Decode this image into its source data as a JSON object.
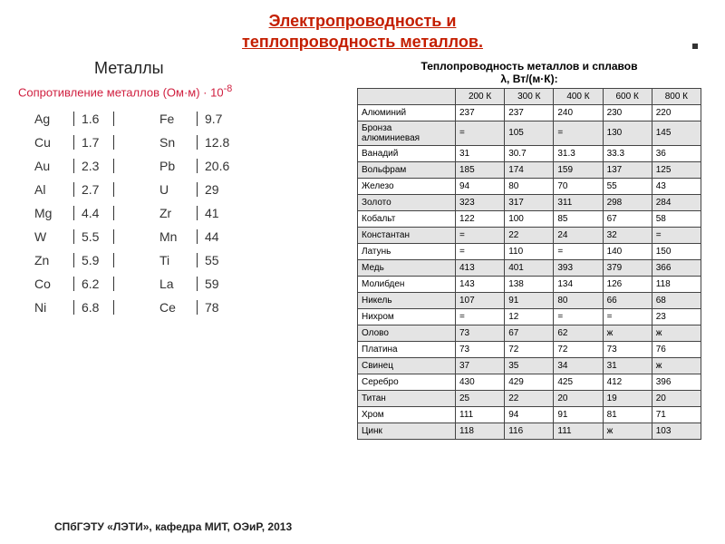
{
  "title_line1": "Электропроводность и",
  "title_line2": "теплопроводность металлов.",
  "metals_heading": "Металлы",
  "resistance_caption_main": "Сопротивление металлов (Ом·м) · 10",
  "resistance_caption_sup": "-8",
  "resistance_left": [
    {
      "sym": "Ag",
      "val": "1.6"
    },
    {
      "sym": "Cu",
      "val": "1.7"
    },
    {
      "sym": "Au",
      "val": "2.3"
    },
    {
      "sym": "Al",
      "val": "2.7"
    },
    {
      "sym": "Mg",
      "val": "4.4"
    },
    {
      "sym": "W",
      "val": "5.5"
    },
    {
      "sym": "Zn",
      "val": "5.9"
    },
    {
      "sym": "Co",
      "val": "6.2"
    },
    {
      "sym": "Ni",
      "val": "6.8"
    }
  ],
  "resistance_right": [
    {
      "sym": "Fe",
      "val": "9.7"
    },
    {
      "sym": "Sn",
      "val": "12.8"
    },
    {
      "sym": "Pb",
      "val": "20.6"
    },
    {
      "sym": "U",
      "val": "29"
    },
    {
      "sym": "Zr",
      "val": "41"
    },
    {
      "sym": "Mn",
      "val": "44"
    },
    {
      "sym": "Ti",
      "val": "55"
    },
    {
      "sym": "La",
      "val": "59"
    },
    {
      "sym": "Ce",
      "val": "78"
    }
  ],
  "tc_title_line1": "Теплопроводность металлов и сплавов",
  "tc_title_line2": "λ, Вт/(м·К):",
  "tc_headers": [
    "",
    "200 К",
    "300 К",
    "400 К",
    "600 К",
    "800 К"
  ],
  "tc_rows": [
    {
      "name": "Алюминий",
      "v": [
        "237",
        "237",
        "240",
        "230",
        "220"
      ]
    },
    {
      "name": "Бронза алюминиевая",
      "v": [
        "=",
        "105",
        "=",
        "130",
        "145"
      ]
    },
    {
      "name": "Ванадий",
      "v": [
        "31",
        "30.7",
        "31.3",
        "33.3",
        "36"
      ]
    },
    {
      "name": "Вольфрам",
      "v": [
        "185",
        "174",
        "159",
        "137",
        "125"
      ]
    },
    {
      "name": "Железо",
      "v": [
        "94",
        "80",
        "70",
        "55",
        "43"
      ]
    },
    {
      "name": "Золото",
      "v": [
        "323",
        "317",
        "311",
        "298",
        "284"
      ]
    },
    {
      "name": "Кобальт",
      "v": [
        "122",
        "100",
        "85",
        "67",
        "58"
      ]
    },
    {
      "name": "Константан",
      "v": [
        "=",
        "22",
        "24",
        "32",
        "="
      ]
    },
    {
      "name": "Латунь",
      "v": [
        "=",
        "110",
        "=",
        "140",
        "150"
      ]
    },
    {
      "name": "Медь",
      "v": [
        "413",
        "401",
        "393",
        "379",
        "366"
      ]
    },
    {
      "name": "Молибден",
      "v": [
        "143",
        "138",
        "134",
        "126",
        "118"
      ]
    },
    {
      "name": "Никель",
      "v": [
        "107",
        "91",
        "80",
        "66",
        "68"
      ]
    },
    {
      "name": "Нихром",
      "v": [
        "=",
        "12",
        "=",
        "=",
        "23"
      ]
    },
    {
      "name": "Олово",
      "v": [
        "73",
        "67",
        "62",
        "ж",
        "ж"
      ]
    },
    {
      "name": "Платина",
      "v": [
        "73",
        "72",
        "72",
        "73",
        "76"
      ]
    },
    {
      "name": "Свинец",
      "v": [
        "37",
        "35",
        "34",
        "31",
        "ж"
      ]
    },
    {
      "name": "Серебро",
      "v": [
        "430",
        "429",
        "425",
        "412",
        "396"
      ]
    },
    {
      "name": "Титан",
      "v": [
        "25",
        "22",
        "20",
        "19",
        "20"
      ]
    },
    {
      "name": "Хром",
      "v": [
        "111",
        "94",
        "91",
        "81",
        "71"
      ]
    },
    {
      "name": "Цинк",
      "v": [
        "118",
        "116",
        "111",
        "ж",
        "103"
      ]
    }
  ],
  "footer": "СПбГЭТУ «ЛЭТИ», кафедра МИТ, ОЭиР, 2013",
  "colors": {
    "title": "#c41e00",
    "caption": "#d02040",
    "table_alt_bg": "#e4e4e4",
    "border": "#444444",
    "background": "#ffffff"
  }
}
